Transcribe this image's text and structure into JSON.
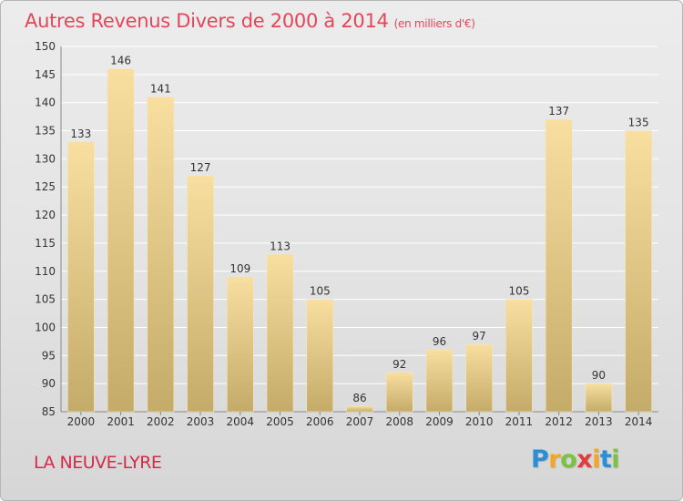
{
  "header": {
    "title": "Autres Revenus Divers de 2000 à 2014",
    "unit": "(en milliers d'€)"
  },
  "footer": {
    "city": "LA NEUVE-LYRE",
    "logo_letters": [
      {
        "ch": "P",
        "color": "#2b8fd8"
      },
      {
        "ch": "r",
        "color": "#f5a623"
      },
      {
        "ch": "o",
        "color": "#7cc242"
      },
      {
        "ch": "x",
        "color": "#e23c3c"
      },
      {
        "ch": "i",
        "color": "#f5a623"
      },
      {
        "ch": "t",
        "color": "#2b8fd8"
      },
      {
        "ch": "i",
        "color": "#7cc242"
      }
    ]
  },
  "colors": {
    "bar_top": "#f8dfa0",
    "bar_bottom": "#c4ab69",
    "grid": "#ffffff",
    "title": "#e3465a",
    "city": "#d9284a"
  },
  "chart_data": {
    "type": "bar",
    "title": "Autres Revenus Divers de 2000 à 2014",
    "xlabel": "",
    "ylabel": "",
    "categories": [
      "2000",
      "2001",
      "2002",
      "2003",
      "2004",
      "2005",
      "2006",
      "2007",
      "2008",
      "2009",
      "2010",
      "2011",
      "2012",
      "2013",
      "2014"
    ],
    "values": [
      133,
      146,
      141,
      127,
      109,
      113,
      105,
      86,
      92,
      96,
      97,
      105,
      137,
      90,
      135
    ],
    "ylim": [
      85,
      150
    ],
    "yticks": [
      85,
      90,
      95,
      100,
      105,
      110,
      115,
      120,
      125,
      130,
      135,
      140,
      145,
      150
    ],
    "grid": true,
    "legend": "none"
  }
}
